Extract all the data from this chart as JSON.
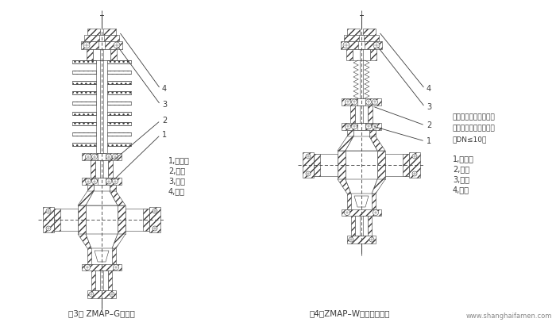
{
  "bg_color": "#ffffff",
  "line_color": "#3a3a3a",
  "fig_width": 7.0,
  "fig_height": 4.11,
  "dpi": 100,
  "fig3_label": "图3： ZMAP–G散热型",
  "fig4_label": "图4：ZMAP–W波纹管密封型",
  "website": "www.shanghaifamen.com",
  "left_legend": [
    "1,散热片",
    "2,接管",
    "3,阀盖",
    "4,填料"
  ],
  "right_desc_line1": "合理的阀芯整体式外轴",
  "right_desc_line2": "结构，维护简单，方便",
  "right_desc_line3": "（DN≤10）",
  "right_legend": [
    "1,波纹管",
    "2,接管",
    "3,阀盖",
    "4,填料"
  ]
}
